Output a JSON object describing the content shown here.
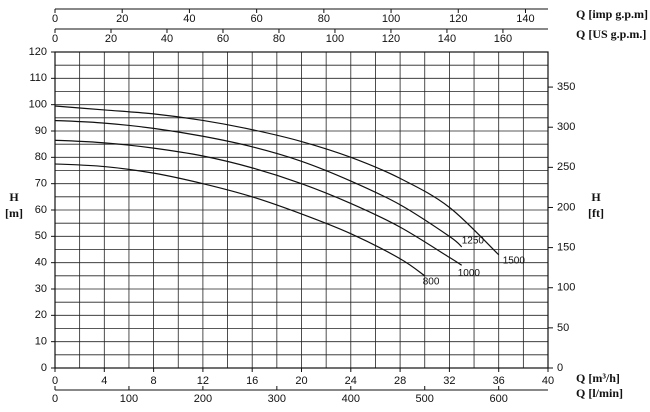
{
  "chart_data": {
    "type": "line",
    "xlabel": "Q [m³/h]",
    "xlim": [
      0,
      40
    ],
    "xticks": [
      0,
      4,
      8,
      12,
      16,
      20,
      24,
      28,
      32,
      36,
      40
    ],
    "xgrid": [
      0,
      2,
      4,
      6,
      8,
      10,
      12,
      14,
      16,
      18,
      20,
      22,
      24,
      26,
      28,
      30,
      32,
      34,
      36,
      38,
      40
    ],
    "ylabel_lines": [
      "H",
      "[m]"
    ],
    "ylim": [
      0,
      120
    ],
    "yticks": [
      0,
      10,
      20,
      30,
      40,
      50,
      60,
      70,
      80,
      90,
      100,
      110,
      120
    ],
    "ygrid": [
      0,
      5,
      10,
      15,
      20,
      25,
      30,
      35,
      40,
      45,
      50,
      55,
      60,
      65,
      70,
      75,
      80,
      85,
      90,
      95,
      100,
      105,
      110,
      115,
      120
    ],
    "y2label_lines": [
      "H",
      "[ft]"
    ],
    "y2lim": [
      0,
      393.7
    ],
    "y2ticks": [
      0,
      50,
      100,
      150,
      200,
      250,
      300,
      350
    ],
    "extra_x_axes": [
      {
        "position": "top",
        "label": "Q [imp g.p.m]",
        "lim": [
          0,
          146.7
        ],
        "ticks": [
          0,
          20,
          40,
          60,
          80,
          100,
          120,
          140
        ]
      },
      {
        "position": "top",
        "label": "Q [US g.p.m.]",
        "lim": [
          0,
          176.1
        ],
        "ticks": [
          0,
          20,
          40,
          60,
          80,
          100,
          120,
          140,
          160
        ]
      },
      {
        "position": "bottom",
        "label": "Q [l/min]",
        "lim": [
          0,
          666.7
        ],
        "ticks": [
          0,
          100,
          200,
          300,
          400,
          500,
          600
        ]
      }
    ],
    "series": [
      {
        "name": "1500",
        "color": "#111111",
        "x": [
          0,
          4,
          8,
          12,
          16,
          20,
          24,
          28,
          32,
          36
        ],
        "values": [
          99.5,
          98,
          96.5,
          94,
          90.5,
          86,
          80,
          72,
          61,
          43
        ]
      },
      {
        "name": "1250",
        "color": "#111111",
        "x": [
          0,
          4,
          8,
          12,
          16,
          20,
          24,
          28,
          32,
          33
        ],
        "values": [
          94,
          93,
          91,
          88,
          84,
          78.5,
          71,
          62,
          50,
          46
        ]
      },
      {
        "name": "1000",
        "color": "#111111",
        "x": [
          0,
          4,
          8,
          12,
          16,
          20,
          24,
          28,
          32,
          33
        ],
        "values": [
          86.5,
          85.5,
          83.5,
          80.5,
          76,
          70,
          62.5,
          53.5,
          42,
          39
        ]
      },
      {
        "name": "800",
        "color": "#111111",
        "x": [
          0,
          4,
          8,
          12,
          16,
          20,
          24,
          28,
          30
        ],
        "values": [
          77.5,
          76.5,
          74,
          70,
          65,
          58.5,
          51,
          41.5,
          35
        ]
      }
    ]
  }
}
